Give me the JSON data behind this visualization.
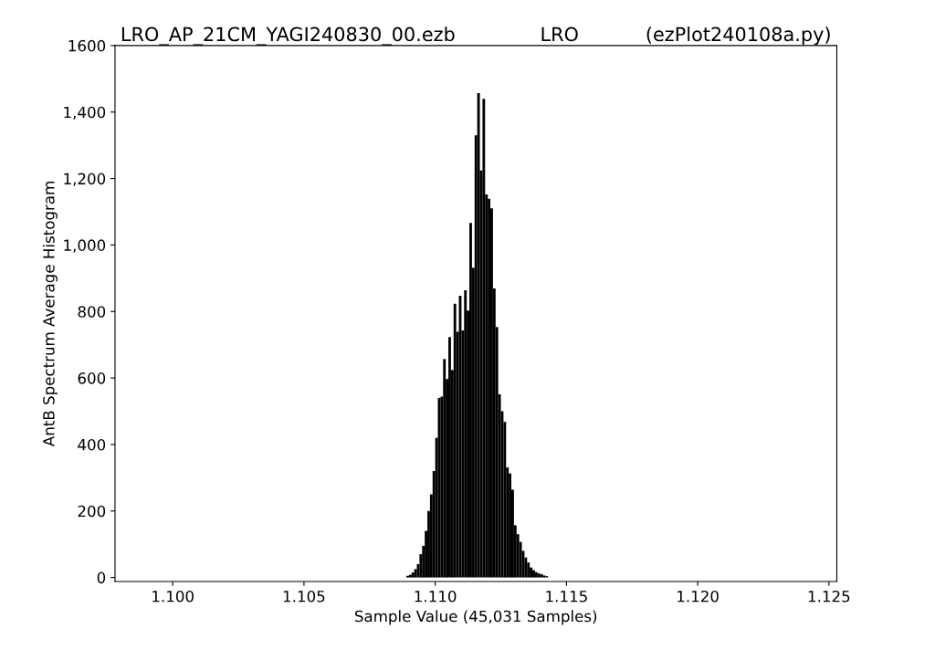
{
  "chart_data": {
    "type": "histogram",
    "title": "LRO_AP_21CM_YAGI240830_00.ezb              LRO           (ezPlot240108a.py)",
    "xlabel": "Sample Value (45,031 Samples)",
    "ylabel": "AntB Spectrum Average Histogram",
    "color": "#000000",
    "bins": [
      1.1089,
      1.109,
      1.1091,
      1.1092,
      1.1093,
      1.1094,
      1.1095,
      1.1096,
      1.1097,
      1.1098,
      1.1099,
      1.11,
      1.1101,
      1.1102,
      1.1103,
      1.1104,
      1.1105,
      1.1106,
      1.1107,
      1.1108,
      1.1109,
      1.111,
      1.1111,
      1.1112,
      1.1113,
      1.1114,
      1.1115,
      1.1116,
      1.1117,
      1.1118,
      1.1119,
      1.112,
      1.1121,
      1.1122,
      1.1123,
      1.1124,
      1.1125,
      1.1126,
      1.1127,
      1.1128,
      1.1129,
      1.113,
      1.1131,
      1.1132,
      1.1133,
      1.1134,
      1.1135,
      1.1136,
      1.1137,
      1.1138,
      1.1139,
      1.114,
      1.1141,
      1.1142,
      1.1143
    ],
    "values": [
      5,
      8,
      15,
      25,
      40,
      70,
      95,
      140,
      200,
      250,
      320,
      420,
      540,
      544,
      657,
      597,
      723,
      624,
      823,
      739,
      847,
      743,
      864,
      803,
      1066,
      932,
      1330,
      1457,
      1224,
      1440,
      1152,
      1139,
      1110,
      869,
      753,
      551,
      500,
      468,
      331,
      313,
      264,
      157,
      130,
      107,
      80,
      60,
      45,
      30,
      22,
      16,
      12,
      10,
      6,
      4
    ],
    "xlim": [
      1.0978,
      1.1253
    ],
    "ylim": [
      -12,
      1600
    ],
    "xticks": [
      {
        "value": 1.1,
        "label": "1.100"
      },
      {
        "value": 1.105,
        "label": "1.105"
      },
      {
        "value": 1.11,
        "label": "1.110"
      },
      {
        "value": 1.115,
        "label": "1.115"
      },
      {
        "value": 1.12,
        "label": "1.120"
      },
      {
        "value": 1.125,
        "label": "1.125"
      }
    ],
    "yticks": [
      0,
      200,
      400,
      600,
      800,
      {
        "value": 1000,
        "label": "1,000"
      },
      {
        "value": 1200,
        "label": "1,200"
      },
      {
        "value": 1400,
        "label": "1,400"
      },
      {
        "value": 1600,
        "label": "1600"
      }
    ],
    "grid": false,
    "legend": false
  }
}
